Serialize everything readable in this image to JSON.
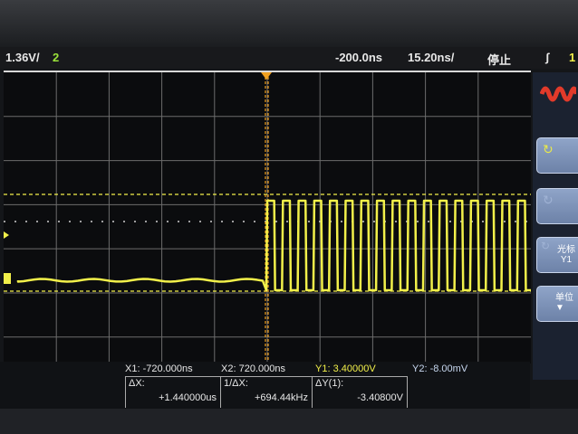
{
  "header": {
    "channel_scale": "1.36V/",
    "channel_number": "2",
    "time_offset": "-200.0ns",
    "time_scale": "15.20ns/",
    "run_state": "停止",
    "trigger_icon": "rising-edge-icon",
    "trigger_channel": "1"
  },
  "colors": {
    "channel1": "#f2f04a",
    "channel2": "#9be33a",
    "menu_button": "#7d92b8",
    "waveform_icon": "#e23a2a"
  },
  "side_menu": {
    "icon": "waveform-icon",
    "buttons": [
      {
        "icon": "rotate-knob-icon",
        "label": ""
      },
      {
        "icon": "rotate-knob-icon",
        "label": ""
      },
      {
        "icon": "rotate-knob-icon",
        "label": "光标",
        "sub": "Y1"
      },
      {
        "label": "单位",
        "icon": "arrow-down-icon"
      }
    ]
  },
  "cursors": {
    "x1": {
      "label": "X1:",
      "value": "-720.000ns"
    },
    "x2": {
      "label": "X2:",
      "value": "720.000ns"
    },
    "y1": {
      "label": "Y1:",
      "value": "3.40000V"
    },
    "y2": {
      "label": "Y2:",
      "value": "-8.00mV"
    },
    "dx": {
      "label": "ΔX:",
      "value": "+1.440000us"
    },
    "inv_dx": {
      "label": "1/ΔX:",
      "value": "+694.44kHz"
    },
    "dy": {
      "label": "ΔY(1):",
      "value": "-3.40800V"
    }
  }
}
